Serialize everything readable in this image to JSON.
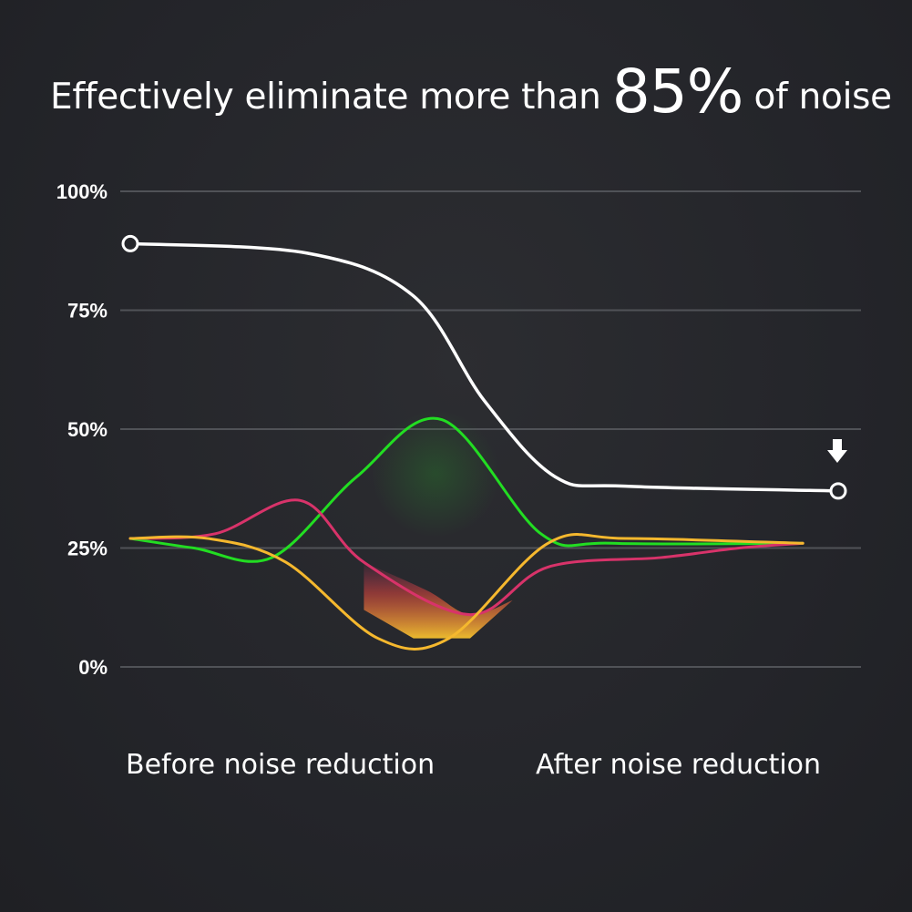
{
  "headline": {
    "prefix": "Effectively eliminate more than",
    "highlight": "85%",
    "suffix": "of noise"
  },
  "chart_data": {
    "type": "line",
    "title": "Effectively eliminate more than 85% of noise",
    "y_ticks": [
      "100%",
      "75%",
      "50%",
      "25%",
      "0%"
    ],
    "ylim": [
      0,
      100
    ],
    "grid": true,
    "x_labels": [
      "Before noise reduction",
      "After noise reduction"
    ],
    "series": [
      {
        "color": "#ffffff",
        "markers": "endpoints",
        "x": [
          0,
          0.25,
          0.4,
          0.5,
          0.6,
          0.7,
          1.0
        ],
        "values": [
          89,
          87,
          78,
          56,
          40,
          38,
          37
        ]
      },
      {
        "color": "#22dd22",
        "x": [
          0,
          0.09,
          0.2,
          0.32,
          0.44,
          0.58,
          0.68,
          0.95
        ],
        "values": [
          27,
          25,
          23,
          40,
          52,
          28,
          26,
          26
        ]
      },
      {
        "color": "#d8336a",
        "x": [
          0,
          0.12,
          0.24,
          0.33,
          0.48,
          0.59,
          0.75,
          0.86,
          0.95
        ],
        "values": [
          27,
          28,
          35,
          22,
          11,
          21,
          23,
          25,
          26
        ]
      },
      {
        "color": "#f5b82e",
        "x": [
          0,
          0.11,
          0.22,
          0.35,
          0.45,
          0.59,
          0.7,
          0.95
        ],
        "values": [
          27,
          27,
          22,
          6,
          6,
          26,
          27,
          26
        ]
      }
    ]
  },
  "colors": {
    "background": "#24252a",
    "grid": "#505257",
    "text": "#ffffff"
  },
  "icons": {
    "down_arrow": "arrow-down-icon"
  }
}
